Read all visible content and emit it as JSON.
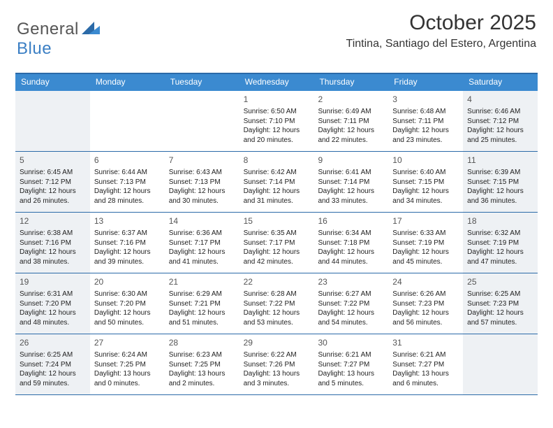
{
  "brand": {
    "general": "General",
    "blue": "Blue",
    "shape_color": "#2b6aa8",
    "shape_color2": "#3b8ad0"
  },
  "header": {
    "month_title": "October 2025",
    "location": "Tintina, Santiago del Estero, Argentina"
  },
  "colors": {
    "header_bg": "#3b8ad0",
    "border": "#2b6aa8",
    "shaded": "#eef1f4",
    "text": "#222222"
  },
  "day_names": [
    "Sunday",
    "Monday",
    "Tuesday",
    "Wednesday",
    "Thursday",
    "Friday",
    "Saturday"
  ],
  "weeks": [
    [
      {
        "day": "",
        "shaded": true,
        "sunrise": "",
        "sunset": "",
        "daylight": ""
      },
      {
        "day": "",
        "shaded": false,
        "sunrise": "",
        "sunset": "",
        "daylight": ""
      },
      {
        "day": "",
        "shaded": false,
        "sunrise": "",
        "sunset": "",
        "daylight": ""
      },
      {
        "day": "1",
        "shaded": false,
        "sunrise": "Sunrise: 6:50 AM",
        "sunset": "Sunset: 7:10 PM",
        "daylight": "Daylight: 12 hours and 20 minutes."
      },
      {
        "day": "2",
        "shaded": false,
        "sunrise": "Sunrise: 6:49 AM",
        "sunset": "Sunset: 7:11 PM",
        "daylight": "Daylight: 12 hours and 22 minutes."
      },
      {
        "day": "3",
        "shaded": false,
        "sunrise": "Sunrise: 6:48 AM",
        "sunset": "Sunset: 7:11 PM",
        "daylight": "Daylight: 12 hours and 23 minutes."
      },
      {
        "day": "4",
        "shaded": true,
        "sunrise": "Sunrise: 6:46 AM",
        "sunset": "Sunset: 7:12 PM",
        "daylight": "Daylight: 12 hours and 25 minutes."
      }
    ],
    [
      {
        "day": "5",
        "shaded": true,
        "sunrise": "Sunrise: 6:45 AM",
        "sunset": "Sunset: 7:12 PM",
        "daylight": "Daylight: 12 hours and 26 minutes."
      },
      {
        "day": "6",
        "shaded": false,
        "sunrise": "Sunrise: 6:44 AM",
        "sunset": "Sunset: 7:13 PM",
        "daylight": "Daylight: 12 hours and 28 minutes."
      },
      {
        "day": "7",
        "shaded": false,
        "sunrise": "Sunrise: 6:43 AM",
        "sunset": "Sunset: 7:13 PM",
        "daylight": "Daylight: 12 hours and 30 minutes."
      },
      {
        "day": "8",
        "shaded": false,
        "sunrise": "Sunrise: 6:42 AM",
        "sunset": "Sunset: 7:14 PM",
        "daylight": "Daylight: 12 hours and 31 minutes."
      },
      {
        "day": "9",
        "shaded": false,
        "sunrise": "Sunrise: 6:41 AM",
        "sunset": "Sunset: 7:14 PM",
        "daylight": "Daylight: 12 hours and 33 minutes."
      },
      {
        "day": "10",
        "shaded": false,
        "sunrise": "Sunrise: 6:40 AM",
        "sunset": "Sunset: 7:15 PM",
        "daylight": "Daylight: 12 hours and 34 minutes."
      },
      {
        "day": "11",
        "shaded": true,
        "sunrise": "Sunrise: 6:39 AM",
        "sunset": "Sunset: 7:15 PM",
        "daylight": "Daylight: 12 hours and 36 minutes."
      }
    ],
    [
      {
        "day": "12",
        "shaded": true,
        "sunrise": "Sunrise: 6:38 AM",
        "sunset": "Sunset: 7:16 PM",
        "daylight": "Daylight: 12 hours and 38 minutes."
      },
      {
        "day": "13",
        "shaded": false,
        "sunrise": "Sunrise: 6:37 AM",
        "sunset": "Sunset: 7:16 PM",
        "daylight": "Daylight: 12 hours and 39 minutes."
      },
      {
        "day": "14",
        "shaded": false,
        "sunrise": "Sunrise: 6:36 AM",
        "sunset": "Sunset: 7:17 PM",
        "daylight": "Daylight: 12 hours and 41 minutes."
      },
      {
        "day": "15",
        "shaded": false,
        "sunrise": "Sunrise: 6:35 AM",
        "sunset": "Sunset: 7:17 PM",
        "daylight": "Daylight: 12 hours and 42 minutes."
      },
      {
        "day": "16",
        "shaded": false,
        "sunrise": "Sunrise: 6:34 AM",
        "sunset": "Sunset: 7:18 PM",
        "daylight": "Daylight: 12 hours and 44 minutes."
      },
      {
        "day": "17",
        "shaded": false,
        "sunrise": "Sunrise: 6:33 AM",
        "sunset": "Sunset: 7:19 PM",
        "daylight": "Daylight: 12 hours and 45 minutes."
      },
      {
        "day": "18",
        "shaded": true,
        "sunrise": "Sunrise: 6:32 AM",
        "sunset": "Sunset: 7:19 PM",
        "daylight": "Daylight: 12 hours and 47 minutes."
      }
    ],
    [
      {
        "day": "19",
        "shaded": true,
        "sunrise": "Sunrise: 6:31 AM",
        "sunset": "Sunset: 7:20 PM",
        "daylight": "Daylight: 12 hours and 48 minutes."
      },
      {
        "day": "20",
        "shaded": false,
        "sunrise": "Sunrise: 6:30 AM",
        "sunset": "Sunset: 7:20 PM",
        "daylight": "Daylight: 12 hours and 50 minutes."
      },
      {
        "day": "21",
        "shaded": false,
        "sunrise": "Sunrise: 6:29 AM",
        "sunset": "Sunset: 7:21 PM",
        "daylight": "Daylight: 12 hours and 51 minutes."
      },
      {
        "day": "22",
        "shaded": false,
        "sunrise": "Sunrise: 6:28 AM",
        "sunset": "Sunset: 7:22 PM",
        "daylight": "Daylight: 12 hours and 53 minutes."
      },
      {
        "day": "23",
        "shaded": false,
        "sunrise": "Sunrise: 6:27 AM",
        "sunset": "Sunset: 7:22 PM",
        "daylight": "Daylight: 12 hours and 54 minutes."
      },
      {
        "day": "24",
        "shaded": false,
        "sunrise": "Sunrise: 6:26 AM",
        "sunset": "Sunset: 7:23 PM",
        "daylight": "Daylight: 12 hours and 56 minutes."
      },
      {
        "day": "25",
        "shaded": true,
        "sunrise": "Sunrise: 6:25 AM",
        "sunset": "Sunset: 7:23 PM",
        "daylight": "Daylight: 12 hours and 57 minutes."
      }
    ],
    [
      {
        "day": "26",
        "shaded": true,
        "sunrise": "Sunrise: 6:25 AM",
        "sunset": "Sunset: 7:24 PM",
        "daylight": "Daylight: 12 hours and 59 minutes."
      },
      {
        "day": "27",
        "shaded": false,
        "sunrise": "Sunrise: 6:24 AM",
        "sunset": "Sunset: 7:25 PM",
        "daylight": "Daylight: 13 hours and 0 minutes."
      },
      {
        "day": "28",
        "shaded": false,
        "sunrise": "Sunrise: 6:23 AM",
        "sunset": "Sunset: 7:25 PM",
        "daylight": "Daylight: 13 hours and 2 minutes."
      },
      {
        "day": "29",
        "shaded": false,
        "sunrise": "Sunrise: 6:22 AM",
        "sunset": "Sunset: 7:26 PM",
        "daylight": "Daylight: 13 hours and 3 minutes."
      },
      {
        "day": "30",
        "shaded": false,
        "sunrise": "Sunrise: 6:21 AM",
        "sunset": "Sunset: 7:27 PM",
        "daylight": "Daylight: 13 hours and 5 minutes."
      },
      {
        "day": "31",
        "shaded": false,
        "sunrise": "Sunrise: 6:21 AM",
        "sunset": "Sunset: 7:27 PM",
        "daylight": "Daylight: 13 hours and 6 minutes."
      },
      {
        "day": "",
        "shaded": true,
        "sunrise": "",
        "sunset": "",
        "daylight": ""
      }
    ]
  ]
}
